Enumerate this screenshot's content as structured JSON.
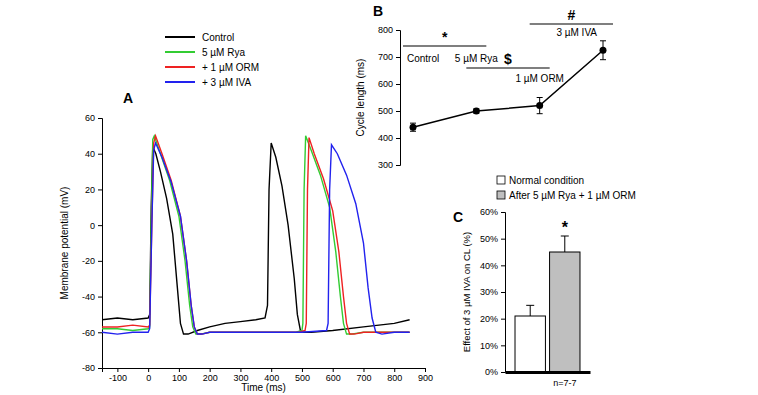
{
  "chart_data": [
    {
      "panel": "A",
      "type": "line",
      "x_label": "Time (ms)",
      "y_label": "Membrane potential (mV)",
      "xlim": [
        -150,
        900
      ],
      "xticks": [
        -100,
        0,
        100,
        200,
        300,
        400,
        500,
        600,
        700,
        800,
        900
      ],
      "ylim": [
        -80,
        60
      ],
      "yticks": [
        -80,
        -60,
        -40,
        -20,
        0,
        20,
        40,
        60
      ],
      "legend": "upper left",
      "series": [
        {
          "name": "Control",
          "color": "#000000",
          "x": [
            -150,
            -100,
            -50,
            0,
            5,
            10,
            15,
            25,
            40,
            60,
            80,
            95,
            105,
            115,
            130,
            160,
            200,
            250,
            300,
            350,
            380,
            388,
            393,
            400,
            415,
            435,
            455,
            475,
            485,
            495,
            505,
            530,
            600,
            700,
            800,
            850
          ],
          "values": [
            -53,
            -52,
            -53,
            -52,
            -50,
            10,
            44,
            40,
            30,
            15,
            -5,
            -35,
            -55,
            -61,
            -61,
            -59,
            -57,
            -55,
            -54,
            -53,
            -52,
            -45,
            20,
            46,
            38,
            22,
            0,
            -30,
            -50,
            -59,
            -60,
            -60,
            -59,
            -57,
            -55,
            -53
          ]
        },
        {
          "name": "5 µM Rya",
          "color": "#33cc33",
          "x": [
            -150,
            -100,
            -50,
            0,
            5,
            10,
            15,
            20,
            40,
            70,
            100,
            120,
            135,
            145,
            155,
            170,
            200,
            300,
            400,
            480,
            500,
            503,
            507,
            512,
            530,
            560,
            590,
            610,
            625,
            635,
            645,
            660,
            700,
            800,
            850
          ],
          "values": [
            -58,
            -58,
            -59,
            -58,
            -57,
            0,
            48,
            50,
            40,
            25,
            5,
            -20,
            -45,
            -57,
            -61,
            -61,
            -60,
            -60,
            -60,
            -60,
            -59,
            -55,
            20,
            50,
            42,
            28,
            10,
            -15,
            -40,
            -55,
            -61,
            -61,
            -60,
            -60,
            -60
          ]
        },
        {
          "name": "+ 1 µM ORM",
          "color": "#ee2222",
          "x": [
            -150,
            -100,
            -50,
            0,
            5,
            12,
            18,
            24,
            45,
            75,
            105,
            125,
            140,
            150,
            160,
            175,
            200,
            300,
            400,
            490,
            510,
            514,
            518,
            523,
            540,
            570,
            600,
            620,
            635,
            645,
            655,
            670,
            700,
            800,
            850
          ],
          "values": [
            -57,
            -57,
            -56,
            -57,
            -56,
            0,
            46,
            50,
            40,
            25,
            5,
            -20,
            -45,
            -57,
            -61,
            -61,
            -60,
            -60,
            -60,
            -60,
            -59,
            -55,
            20,
            49,
            40,
            26,
            8,
            -15,
            -40,
            -55,
            -61,
            -61,
            -60,
            -60,
            -60
          ]
        },
        {
          "name": "+ 3 µM IVA",
          "color": "#2222ee",
          "x": [
            -150,
            -100,
            -50,
            0,
            5,
            12,
            18,
            24,
            45,
            75,
            105,
            125,
            140,
            150,
            160,
            175,
            200,
            300,
            400,
            500,
            580,
            585,
            590,
            596,
            615,
            645,
            675,
            700,
            715,
            728,
            740,
            760,
            800,
            850
          ],
          "values": [
            -60,
            -61,
            -60,
            -60,
            -58,
            0,
            42,
            46,
            38,
            24,
            5,
            -20,
            -45,
            -57,
            -61,
            -61,
            -60,
            -60,
            -60,
            -60,
            -59,
            -55,
            20,
            45,
            40,
            28,
            12,
            -10,
            -35,
            -52,
            -60,
            -61,
            -60,
            -60
          ]
        }
      ]
    },
    {
      "panel": "B",
      "type": "line",
      "y_label": "Cycle length (ms)",
      "categories": [
        "Control",
        "5 µM Rya",
        "1 µM ORM",
        "3 µM IVA"
      ],
      "values": [
        440,
        500,
        520,
        725
      ],
      "errors": [
        15,
        8,
        30,
        35
      ],
      "color": "#000000",
      "marker": "circle",
      "ylim": [
        300,
        800
      ],
      "yticks": [
        300,
        400,
        500,
        600,
        700,
        800
      ],
      "comparisons": [
        {
          "label": "*",
          "from": 0,
          "to": 1
        },
        {
          "label": "$",
          "from": 1,
          "to": 2
        },
        {
          "label": "#",
          "from": 2,
          "to": 3
        }
      ]
    },
    {
      "panel": "C",
      "type": "bar",
      "y_label": "Effect of 3 µM IVA on CL (%)",
      "categories": [
        null
      ],
      "series": [
        {
          "name": "Normal condition",
          "color": "#ffffff",
          "values": [
            21
          ],
          "errors": [
            4
          ]
        },
        {
          "name": "After 5 µM Rya + 1 µM ORM",
          "color": "#bfbfbf",
          "values": [
            45
          ],
          "errors": [
            6
          ],
          "significance": "*"
        }
      ],
      "ylim": [
        0,
        60
      ],
      "yticks": [
        {
          "value": 0,
          "label": "0%"
        },
        {
          "value": 10,
          "label": "10%"
        },
        {
          "value": 20,
          "label": "20%"
        },
        {
          "value": 30,
          "label": "30%"
        },
        {
          "value": 40,
          "label": "40%"
        },
        {
          "value": 50,
          "label": "50%"
        },
        {
          "value": 60,
          "label": "60%"
        }
      ],
      "legend": "upper left",
      "annotation": "n=7-7"
    }
  ]
}
